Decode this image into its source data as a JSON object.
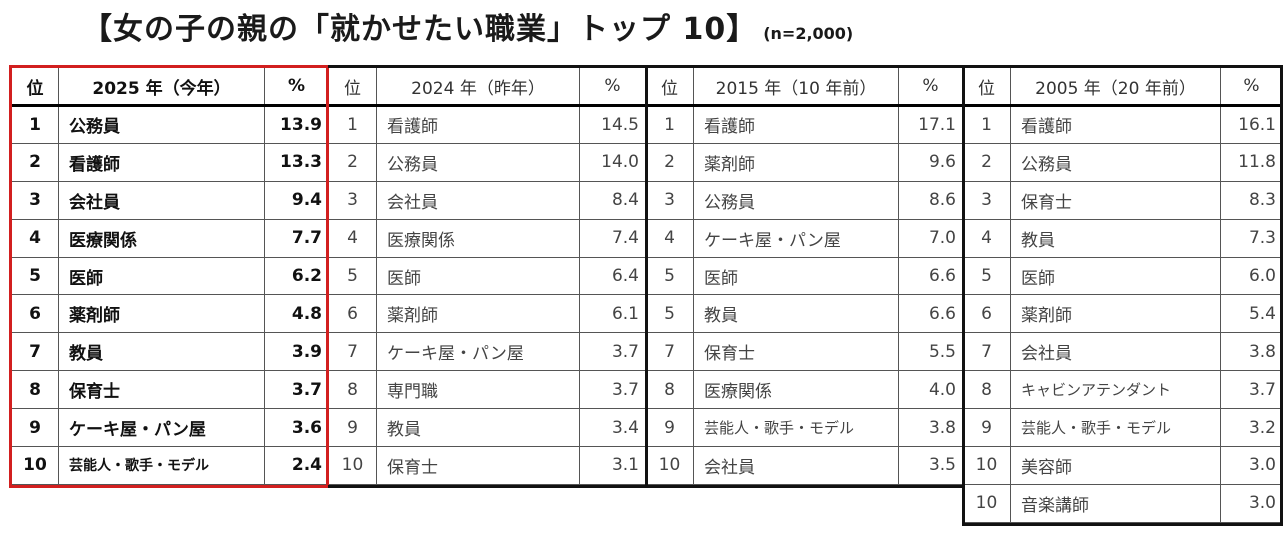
{
  "title": {
    "main": "【女の子の親の「就かせたい職業」トップ 10】",
    "sample": "(n=2,000)"
  },
  "tables": {
    "y2025": {
      "headers": {
        "rank": "位",
        "year": "2025 年（今年）",
        "pct": "%"
      },
      "rows": [
        {
          "rank": "1",
          "job": "公務員",
          "pct": "13.9"
        },
        {
          "rank": "2",
          "job": "看護師",
          "pct": "13.3"
        },
        {
          "rank": "3",
          "job": "会社員",
          "pct": "9.4"
        },
        {
          "rank": "4",
          "job": "医療関係",
          "pct": "7.7"
        },
        {
          "rank": "5",
          "job": "医師",
          "pct": "6.2"
        },
        {
          "rank": "6",
          "job": "薬剤師",
          "pct": "4.8"
        },
        {
          "rank": "7",
          "job": "教員",
          "pct": "3.9"
        },
        {
          "rank": "8",
          "job": "保育士",
          "pct": "3.7"
        },
        {
          "rank": "9",
          "job": "ケーキ屋・パン屋",
          "pct": "3.6"
        },
        {
          "rank": "10",
          "job": "芸能人・歌手・モデル",
          "pct": "2.4"
        }
      ]
    },
    "y2024": {
      "headers": {
        "rank": "位",
        "year": "2024 年（昨年）",
        "pct": "%"
      },
      "rows": [
        {
          "rank": "1",
          "job": "看護師",
          "pct": "14.5"
        },
        {
          "rank": "2",
          "job": "公務員",
          "pct": "14.0"
        },
        {
          "rank": "3",
          "job": "会社員",
          "pct": "8.4"
        },
        {
          "rank": "4",
          "job": "医療関係",
          "pct": "7.4"
        },
        {
          "rank": "5",
          "job": "医師",
          "pct": "6.4"
        },
        {
          "rank": "6",
          "job": "薬剤師",
          "pct": "6.1"
        },
        {
          "rank": "7",
          "job": "ケーキ屋・パン屋",
          "pct": "3.7"
        },
        {
          "rank": "8",
          "job": "専門職",
          "pct": "3.7"
        },
        {
          "rank": "9",
          "job": "教員",
          "pct": "3.4"
        },
        {
          "rank": "10",
          "job": "保育士",
          "pct": "3.1"
        }
      ]
    },
    "y2015": {
      "headers": {
        "rank": "位",
        "year": "2015 年（10 年前）",
        "pct": "%"
      },
      "rows": [
        {
          "rank": "1",
          "job": "看護師",
          "pct": "17.1"
        },
        {
          "rank": "2",
          "job": "薬剤師",
          "pct": "9.6"
        },
        {
          "rank": "3",
          "job": "公務員",
          "pct": "8.6"
        },
        {
          "rank": "4",
          "job": "ケーキ屋・パン屋",
          "pct": "7.0"
        },
        {
          "rank": "5",
          "job": "医師",
          "pct": "6.6"
        },
        {
          "rank": "5",
          "job": "教員",
          "pct": "6.6"
        },
        {
          "rank": "7",
          "job": "保育士",
          "pct": "5.5"
        },
        {
          "rank": "8",
          "job": "医療関係",
          "pct": "4.0"
        },
        {
          "rank": "9",
          "job": "芸能人・歌手・モデル",
          "pct": "3.8"
        },
        {
          "rank": "10",
          "job": "会社員",
          "pct": "3.5"
        }
      ]
    },
    "y2005": {
      "headers": {
        "rank": "位",
        "year": "2005 年（20 年前）",
        "pct": "%"
      },
      "rows": [
        {
          "rank": "1",
          "job": "看護師",
          "pct": "16.1"
        },
        {
          "rank": "2",
          "job": "公務員",
          "pct": "11.8"
        },
        {
          "rank": "3",
          "job": "保育士",
          "pct": "8.3"
        },
        {
          "rank": "4",
          "job": "教員",
          "pct": "7.3"
        },
        {
          "rank": "5",
          "job": "医師",
          "pct": "6.0"
        },
        {
          "rank": "6",
          "job": "薬剤師",
          "pct": "5.4"
        },
        {
          "rank": "7",
          "job": "会社員",
          "pct": "3.8"
        },
        {
          "rank": "8",
          "job": "キャビンアテンダント",
          "pct": "3.7"
        },
        {
          "rank": "9",
          "job": "芸能人・歌手・モデル",
          "pct": "3.2"
        },
        {
          "rank": "10",
          "job": "美容師",
          "pct": "3.0"
        },
        {
          "rank": "10",
          "job": "音楽講師",
          "pct": "3.0"
        }
      ]
    }
  },
  "colors": {
    "highlight_border": "#d21f1f",
    "border": "#111111"
  }
}
